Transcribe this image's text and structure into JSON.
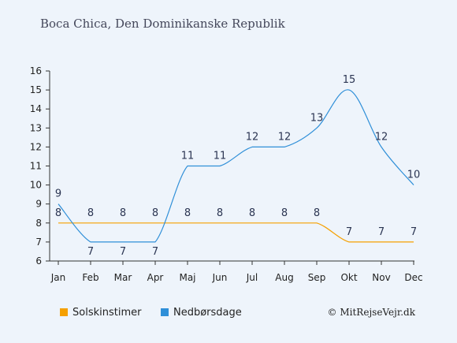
{
  "title": "Boca Chica, Den Dominikanske Republik",
  "credit": "© MitRejseVejr.dk",
  "chart_data": {
    "type": "line",
    "categories": [
      "Jan",
      "Feb",
      "Mar",
      "Apr",
      "Maj",
      "Jun",
      "Jul",
      "Aug",
      "Sep",
      "Okt",
      "Nov",
      "Dec"
    ],
    "ylim": [
      6,
      16
    ],
    "yticks": [
      6,
      7,
      8,
      9,
      10,
      11,
      12,
      13,
      14,
      15,
      16
    ],
    "grid": false,
    "legend_position": "bottom",
    "series": [
      {
        "name": "Solskinstimer",
        "color": "#f5a000",
        "values": [
          8,
          8,
          8,
          8,
          8,
          8,
          8,
          8,
          8,
          7,
          7,
          7
        ]
      },
      {
        "name": "Nedbørsdage",
        "color": "#2f8fd8",
        "values": [
          9,
          7,
          7,
          7,
          11,
          11,
          12,
          12,
          13,
          15,
          12,
          10
        ]
      }
    ]
  }
}
